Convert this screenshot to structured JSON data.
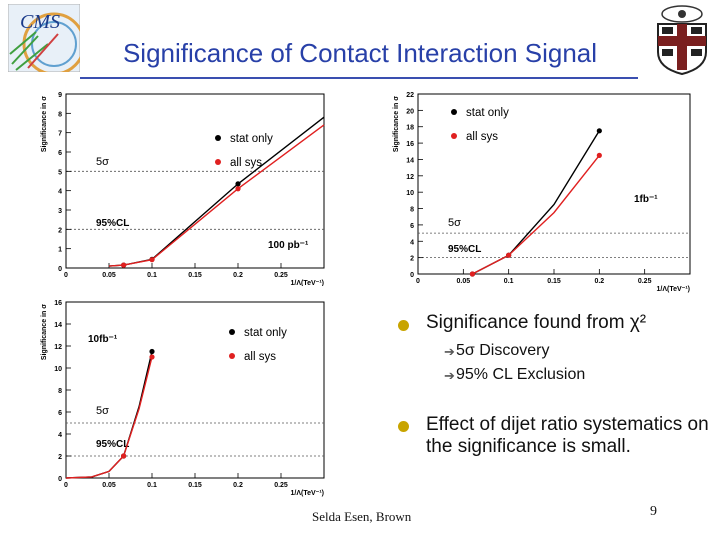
{
  "slide": {
    "title": "Significance of Contact Interaction Signal",
    "footer": "Selda Esen, Brown",
    "page_number": "9",
    "bullets": [
      {
        "text": "Significance found from χ²",
        "subitems": [
          "5σ Discovery",
          "95% CL Exclusion"
        ]
      },
      {
        "text": "Effect of dijet ratio systematics on the significance is small.",
        "subitems": []
      }
    ]
  },
  "chart_data": [
    {
      "type": "line",
      "ylabel": "Significance in σ",
      "xlabel": "1/Λ(TeV⁻¹)",
      "annotation": "100 pb⁻¹",
      "xlim": [
        0,
        0.3
      ],
      "ylim": [
        0,
        9
      ],
      "xticks": [
        0,
        0.05,
        0.1,
        0.15,
        0.2,
        0.25
      ],
      "yticks": [
        0,
        1,
        2,
        3,
        4,
        5,
        6,
        7,
        8,
        9
      ],
      "lines": [
        {
          "label": "5σ",
          "y": 5
        },
        {
          "label": "95%CL",
          "y": 2
        }
      ],
      "series": [
        {
          "name": "stat only",
          "color": "#000000",
          "x": [
            0.05,
            0.067,
            0.1,
            0.2,
            0.3
          ],
          "y": [
            0.1,
            0.15,
            0.45,
            4.35,
            7.8
          ],
          "points_x": [
            0.067,
            0.1,
            0.2
          ],
          "points_y": [
            0.15,
            0.45,
            4.35
          ]
        },
        {
          "name": "all sys",
          "color": "#e02020",
          "x": [
            0.05,
            0.067,
            0.1,
            0.2,
            0.3
          ],
          "y": [
            0.1,
            0.15,
            0.43,
            4.1,
            7.4
          ],
          "points_x": [
            0.067,
            0.1,
            0.2
          ],
          "points_y": [
            0.15,
            0.43,
            4.1
          ]
        }
      ]
    },
    {
      "type": "line",
      "ylabel": "Significance in σ",
      "xlabel": "1/Λ(TeV⁻¹)",
      "annotation": "1fb⁻¹",
      "xlim": [
        0,
        0.3
      ],
      "ylim": [
        0,
        22
      ],
      "xticks": [
        0,
        0.05,
        0.1,
        0.15,
        0.2,
        0.25
      ],
      "yticks": [
        0,
        2,
        4,
        6,
        8,
        10,
        12,
        14,
        16,
        18,
        20,
        22
      ],
      "lines": [
        {
          "label": "5σ",
          "y": 5
        },
        {
          "label": "95%CL",
          "y": 2
        }
      ],
      "series": [
        {
          "name": "stat only",
          "color": "#000000",
          "x": [
            0.06,
            0.1,
            0.15,
            0.2
          ],
          "y": [
            0,
            2.3,
            8.5,
            17.5
          ],
          "points_x": [
            0.06,
            0.1,
            0.2
          ],
          "points_y": [
            0,
            2.3,
            17.5
          ]
        },
        {
          "name": "all sys",
          "color": "#e02020",
          "x": [
            0.06,
            0.1,
            0.15,
            0.2
          ],
          "y": [
            0,
            2.3,
            7.5,
            14.5
          ],
          "points_x": [
            0.06,
            0.1,
            0.2
          ],
          "points_y": [
            0,
            2.3,
            14.5
          ]
        }
      ]
    },
    {
      "type": "line",
      "ylabel": "Significance in σ",
      "xlabel": "1/Λ(TeV⁻¹)",
      "annotation": "10fb⁻¹",
      "xlim": [
        0,
        0.3
      ],
      "ylim": [
        0,
        16
      ],
      "xticks": [
        0,
        0.05,
        0.1,
        0.15,
        0.2,
        0.25
      ],
      "yticks": [
        0,
        2,
        4,
        6,
        8,
        10,
        12,
        14,
        16
      ],
      "lines": [
        {
          "label": "5σ",
          "y": 5
        },
        {
          "label": "95%CL",
          "y": 2
        }
      ],
      "series": [
        {
          "name": "stat only",
          "color": "#000000",
          "x": [
            0,
            0.03,
            0.05,
            0.067,
            0.085,
            0.1
          ],
          "y": [
            0,
            0.1,
            0.6,
            2,
            6.5,
            11.5
          ],
          "points_x": [
            0.067,
            0.1
          ],
          "points_y": [
            2,
            11.5
          ]
        },
        {
          "name": "all sys",
          "color": "#e02020",
          "x": [
            0,
            0.03,
            0.05,
            0.067,
            0.085,
            0.1
          ],
          "y": [
            0,
            0.1,
            0.6,
            2,
            6.3,
            11
          ],
          "points_x": [
            0.067,
            0.1
          ],
          "points_y": [
            2,
            11
          ]
        }
      ]
    }
  ]
}
